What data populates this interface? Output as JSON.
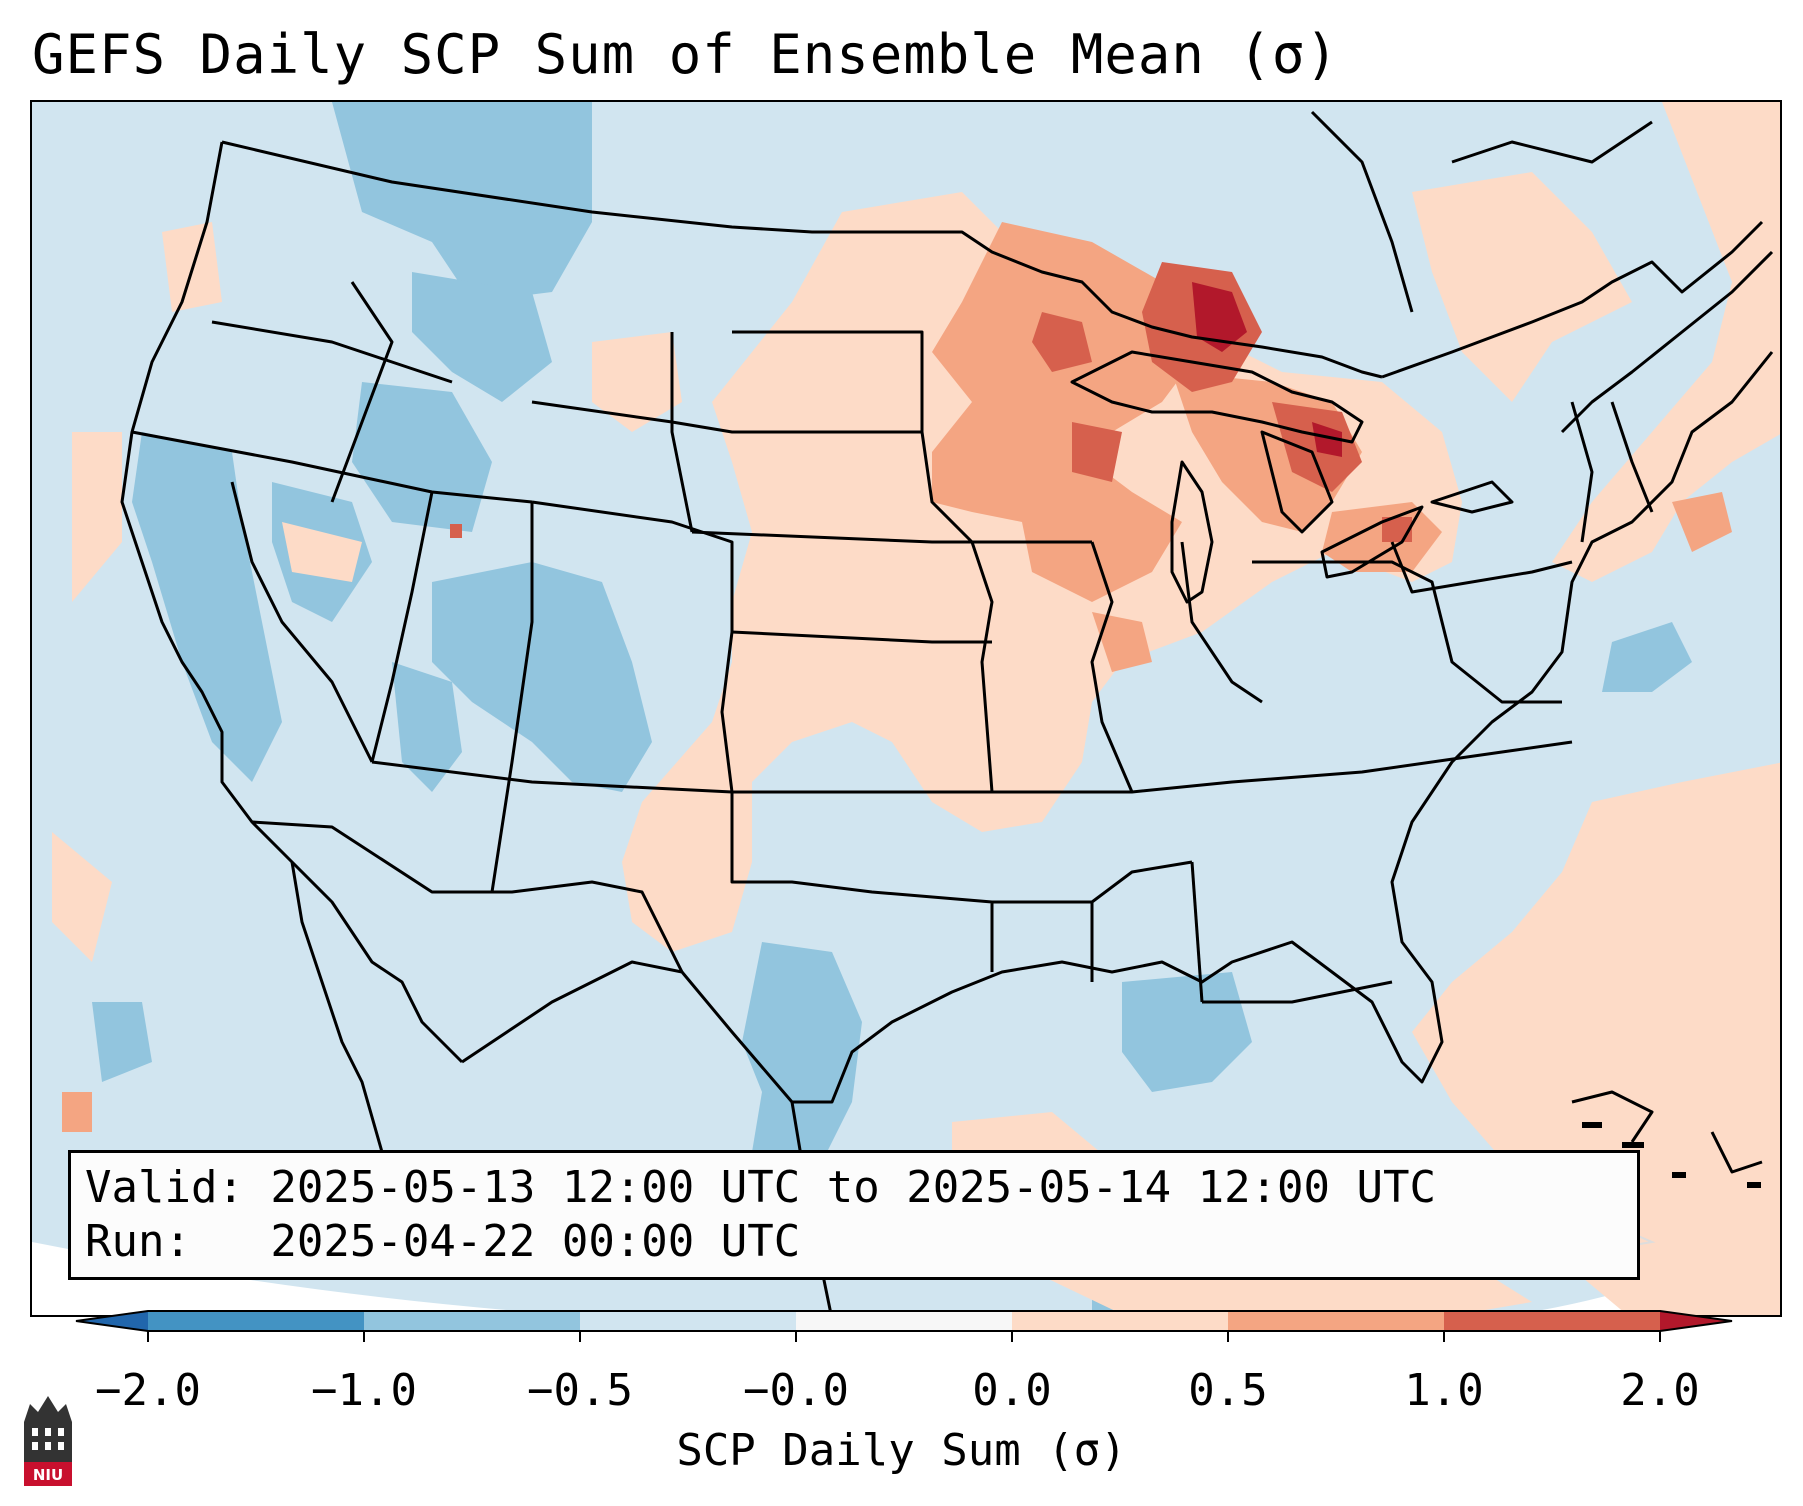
{
  "title": "GEFS Daily SCP Sum of Ensemble Mean (σ)",
  "info": {
    "valid_line": "Valid: 2025-05-13 12:00 UTC to 2025-05-14 12:00 UTC",
    "run_line": "Run:   2025-04-22 00:00 UTC"
  },
  "colorbar": {
    "label": "SCP Daily Sum (σ)",
    "ticks": [
      "−2.0",
      "−1.0",
      "−0.5",
      "−0.0",
      "0.0",
      "0.5",
      "1.0",
      "2.0"
    ],
    "colors": {
      "below_min": "#2166ac",
      "n2_to_n1": "#4393c3",
      "n1_to_n05": "#92c5de",
      "n05_to_0": "#d1e5f0",
      "zero": "#f7f7f7",
      "p0_to_p05": "#fddbc7",
      "p05_to_p1": "#f4a582",
      "p1_to_p2": "#d6604d",
      "above_max": "#b2182b"
    }
  },
  "logo": {
    "text": "NIU"
  }
}
